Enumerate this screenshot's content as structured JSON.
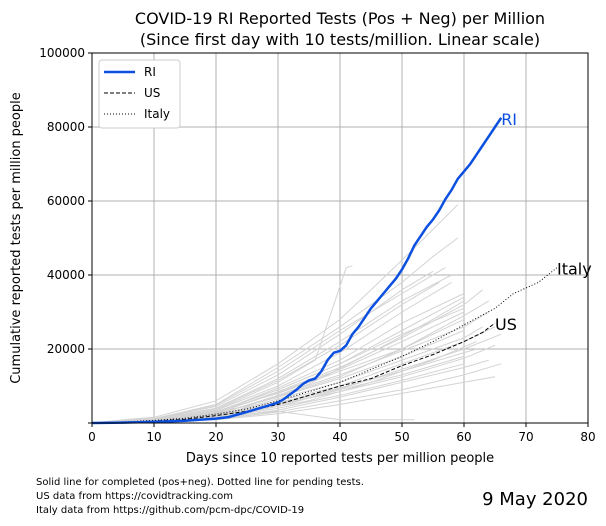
{
  "chart_data": {
    "type": "line",
    "title": "COVID-19 RI Reported Tests (Pos + Neg) per Million",
    "subtitle": "(Since first day with 10 tests/million. Linear scale)",
    "xlabel": "Days since 10 reported tests per million people",
    "ylabel": "Cumulative reported tests per million people",
    "xlim": [
      0,
      80
    ],
    "ylim": [
      0,
      100000
    ],
    "x_ticks": [
      "0",
      "10",
      "20",
      "30",
      "40",
      "50",
      "60",
      "70",
      "80"
    ],
    "y_ticks": [
      "",
      "20000",
      "40000",
      "60000",
      "80000",
      "100000"
    ],
    "grid": true,
    "legend_position": "top-left",
    "legend": [
      "RI",
      "US",
      "Italy"
    ],
    "series": [
      {
        "name": "RI",
        "style": "solid",
        "color": "#0b50e0",
        "end_label": "RI",
        "points": [
          [
            0,
            0
          ],
          [
            5,
            100
          ],
          [
            10,
            300
          ],
          [
            15,
            600
          ],
          [
            20,
            1200
          ],
          [
            22,
            1600
          ],
          [
            25,
            3000
          ],
          [
            28,
            4500
          ],
          [
            30,
            5500
          ],
          [
            31,
            6500
          ],
          [
            32,
            7800
          ],
          [
            33,
            9000
          ],
          [
            34,
            10500
          ],
          [
            35,
            11500
          ],
          [
            36,
            12000
          ],
          [
            37,
            14000
          ],
          [
            38,
            17000
          ],
          [
            39,
            19000
          ],
          [
            40,
            19500
          ],
          [
            41,
            21000
          ],
          [
            42,
            24000
          ],
          [
            43,
            26000
          ],
          [
            44,
            28500
          ],
          [
            45,
            31000
          ],
          [
            46,
            33000
          ],
          [
            47,
            35000
          ],
          [
            48,
            37000
          ],
          [
            49,
            39000
          ],
          [
            50,
            41500
          ],
          [
            51,
            44500
          ],
          [
            52,
            48000
          ],
          [
            53,
            50500
          ],
          [
            54,
            53000
          ],
          [
            55,
            55000
          ],
          [
            56,
            57500
          ],
          [
            57,
            60500
          ],
          [
            58,
            63000
          ],
          [
            59,
            66000
          ],
          [
            60,
            68000
          ],
          [
            61,
            70000
          ],
          [
            62,
            72500
          ],
          [
            63,
            75000
          ],
          [
            64,
            77500
          ],
          [
            65,
            80000
          ],
          [
            66,
            82500
          ]
        ]
      },
      {
        "name": "US",
        "style": "dashed",
        "color": "#000000",
        "end_label": "US",
        "points": [
          [
            0,
            0
          ],
          [
            5,
            200
          ],
          [
            10,
            500
          ],
          [
            15,
            1000
          ],
          [
            20,
            2000
          ],
          [
            25,
            3200
          ],
          [
            30,
            5000
          ],
          [
            35,
            7500
          ],
          [
            40,
            10000
          ],
          [
            45,
            12000
          ],
          [
            50,
            15500
          ],
          [
            55,
            18500
          ],
          [
            60,
            22000
          ],
          [
            63,
            24500
          ],
          [
            65,
            27000
          ]
        ]
      },
      {
        "name": "Italy",
        "style": "dotted",
        "color": "#000000",
        "end_label": "Italy",
        "points": [
          [
            0,
            0
          ],
          [
            5,
            300
          ],
          [
            10,
            700
          ],
          [
            15,
            1300
          ],
          [
            20,
            2400
          ],
          [
            25,
            3800
          ],
          [
            30,
            6000
          ],
          [
            35,
            8500
          ],
          [
            40,
            11000
          ],
          [
            45,
            14500
          ],
          [
            50,
            18000
          ],
          [
            55,
            22000
          ],
          [
            60,
            26500
          ],
          [
            65,
            31000
          ],
          [
            68,
            35000
          ],
          [
            72,
            38000
          ],
          [
            75,
            42000
          ]
        ]
      }
    ],
    "background_series": [
      [
        [
          0,
          0
        ],
        [
          10,
          400
        ],
        [
          20,
          1500
        ],
        [
          30,
          4500
        ],
        [
          40,
          9000
        ],
        [
          50,
          13000
        ],
        [
          60,
          18000
        ]
      ],
      [
        [
          0,
          0
        ],
        [
          10,
          600
        ],
        [
          20,
          2500
        ],
        [
          30,
          7000
        ],
        [
          40,
          12000
        ],
        [
          50,
          18000
        ],
        [
          60,
          25000
        ]
      ],
      [
        [
          0,
          0
        ],
        [
          10,
          300
        ],
        [
          20,
          1200
        ],
        [
          30,
          3500
        ],
        [
          40,
          7000
        ],
        [
          50,
          11000
        ],
        [
          60,
          15000
        ],
        [
          64,
          17000
        ]
      ],
      [
        [
          0,
          0
        ],
        [
          10,
          800
        ],
        [
          20,
          3000
        ],
        [
          30,
          9000
        ],
        [
          40,
          16000
        ],
        [
          50,
          24000
        ],
        [
          60,
          31000
        ]
      ],
      [
        [
          0,
          0
        ],
        [
          10,
          1000
        ],
        [
          20,
          4000
        ],
        [
          30,
          12000
        ],
        [
          40,
          22000
        ],
        [
          50,
          33000
        ],
        [
          58,
          40000
        ]
      ],
      [
        [
          0,
          0
        ],
        [
          10,
          700
        ],
        [
          20,
          3500
        ],
        [
          30,
          11000
        ],
        [
          36,
          17000
        ],
        [
          41,
          42000
        ],
        [
          42,
          42500
        ]
      ],
      [
        [
          0,
          0
        ],
        [
          10,
          500
        ],
        [
          20,
          2000
        ],
        [
          30,
          6000
        ],
        [
          40,
          10000
        ],
        [
          50,
          16000
        ],
        [
          60,
          22000
        ],
        [
          65,
          26000
        ]
      ],
      [
        [
          0,
          0
        ],
        [
          10,
          900
        ],
        [
          20,
          3200
        ],
        [
          30,
          8000
        ],
        [
          40,
          14000
        ],
        [
          50,
          20000
        ],
        [
          60,
          28000
        ]
      ],
      [
        [
          0,
          0
        ],
        [
          10,
          1200
        ],
        [
          20,
          5000
        ],
        [
          30,
          15000
        ],
        [
          40,
          26000
        ],
        [
          50,
          38000
        ],
        [
          55,
          45000
        ],
        [
          59,
          50000
        ]
      ],
      [
        [
          0,
          0
        ],
        [
          10,
          400
        ],
        [
          20,
          1800
        ],
        [
          30,
          5500
        ],
        [
          40,
          9500
        ],
        [
          50,
          14000
        ],
        [
          62,
          20000
        ]
      ],
      [
        [
          0,
          0
        ],
        [
          10,
          600
        ],
        [
          20,
          2200
        ],
        [
          30,
          7500
        ],
        [
          40,
          13000
        ],
        [
          50,
          19500
        ],
        [
          60,
          26000
        ],
        [
          64,
          30000
        ]
      ],
      [
        [
          0,
          0
        ],
        [
          10,
          1100
        ],
        [
          20,
          4500
        ],
        [
          30,
          13000
        ],
        [
          40,
          24000
        ],
        [
          50,
          36000
        ],
        [
          55,
          41000
        ]
      ],
      [
        [
          0,
          0
        ],
        [
          10,
          300
        ],
        [
          20,
          1000
        ],
        [
          30,
          3000
        ],
        [
          40,
          6000
        ],
        [
          50,
          9000
        ],
        [
          60,
          13000
        ],
        [
          66,
          16000
        ]
      ],
      [
        [
          0,
          0
        ],
        [
          10,
          800
        ],
        [
          20,
          2800
        ],
        [
          30,
          9500
        ],
        [
          40,
          17000
        ],
        [
          50,
          27000
        ],
        [
          60,
          35000
        ]
      ],
      [
        [
          0,
          0
        ],
        [
          10,
          700
        ],
        [
          20,
          2600
        ],
        [
          30,
          8500
        ],
        [
          40,
          15000
        ],
        [
          50,
          23000
        ],
        [
          60,
          32000
        ],
        [
          63,
          36000
        ]
      ],
      [
        [
          0,
          0
        ],
        [
          10,
          1500
        ],
        [
          20,
          6000
        ],
        [
          30,
          16000
        ],
        [
          40,
          28000
        ],
        [
          50,
          44000
        ],
        [
          59,
          59000
        ]
      ],
      [
        [
          0,
          0
        ],
        [
          10,
          500
        ],
        [
          20,
          1600
        ],
        [
          30,
          5000
        ],
        [
          40,
          8500
        ],
        [
          50,
          12500
        ],
        [
          60,
          17500
        ],
        [
          65,
          21000
        ]
      ],
      [
        [
          0,
          0
        ],
        [
          10,
          900
        ],
        [
          20,
          3400
        ],
        [
          30,
          10000
        ],
        [
          40,
          19000
        ],
        [
          50,
          30000
        ],
        [
          58,
          38000
        ]
      ],
      [
        [
          0,
          0
        ],
        [
          10,
          400
        ],
        [
          20,
          1400
        ],
        [
          30,
          4000
        ],
        [
          40,
          7500
        ],
        [
          50,
          11500
        ],
        [
          60,
          16000
        ]
      ],
      [
        [
          0,
          0
        ],
        [
          10,
          1000
        ],
        [
          20,
          3800
        ],
        [
          30,
          11500
        ],
        [
          40,
          21000
        ],
        [
          50,
          32000
        ],
        [
          56,
          38000
        ]
      ],
      [
        [
          0,
          0
        ],
        [
          10,
          600
        ],
        [
          20,
          2400
        ],
        [
          30,
          7200
        ],
        [
          40,
          12500
        ],
        [
          50,
          20000
        ],
        [
          60,
          29000
        ],
        [
          64,
          33000
        ]
      ],
      [
        [
          0,
          0
        ],
        [
          10,
          300
        ],
        [
          20,
          900
        ],
        [
          30,
          2500
        ],
        [
          40,
          5000
        ],
        [
          50,
          8000
        ],
        [
          60,
          11000
        ],
        [
          65,
          12500
        ]
      ],
      [
        [
          0,
          0
        ],
        [
          10,
          700
        ],
        [
          20,
          3000
        ],
        [
          30,
          9000
        ],
        [
          40,
          16000
        ],
        [
          50,
          25000
        ],
        [
          60,
          34000
        ]
      ],
      [
        [
          0,
          0
        ],
        [
          10,
          1200
        ],
        [
          20,
          4800
        ],
        [
          30,
          14000
        ],
        [
          40,
          25000
        ],
        [
          50,
          35000
        ],
        [
          57,
          42000
        ]
      ],
      [
        [
          0,
          0
        ],
        [
          10,
          500
        ],
        [
          20,
          2000
        ],
        [
          30,
          6500
        ],
        [
          40,
          11000
        ],
        [
          50,
          17000
        ],
        [
          60,
          23000
        ],
        [
          63,
          26000
        ]
      ],
      [
        [
          0,
          0
        ],
        [
          10,
          800
        ],
        [
          20,
          2700
        ],
        [
          30,
          8200
        ],
        [
          40,
          14500
        ],
        [
          50,
          22000
        ],
        [
          60,
          30000
        ]
      ],
      [
        [
          0,
          0
        ],
        [
          10,
          400
        ],
        [
          20,
          1700
        ],
        [
          30,
          5200
        ],
        [
          40,
          9200
        ],
        [
          50,
          14500
        ],
        [
          60,
          20000
        ],
        [
          66,
          24000
        ]
      ],
      [
        [
          0,
          0
        ],
        [
          5,
          200
        ],
        [
          15,
          800
        ],
        [
          25,
          2000
        ],
        [
          30,
          3000
        ]
      ],
      [
        [
          0,
          0
        ],
        [
          8,
          300
        ],
        [
          20,
          1500
        ],
        [
          35,
          6000
        ],
        [
          45,
          11000
        ],
        [
          55,
          17000
        ],
        [
          62,
          22000
        ]
      ],
      [
        [
          0,
          0
        ],
        [
          10,
          600
        ],
        [
          25,
          4500
        ],
        [
          35,
          10500
        ],
        [
          45,
          19000
        ],
        [
          55,
          28000
        ],
        [
          60,
          33000
        ]
      ],
      [
        [
          0,
          0
        ],
        [
          10,
          500
        ],
        [
          20,
          1600
        ],
        [
          30,
          3200
        ],
        [
          40,
          900
        ],
        [
          52,
          900
        ]
      ],
      [
        [
          0,
          0
        ],
        [
          6,
          1000
        ],
        [
          10,
          1500
        ]
      ]
    ]
  },
  "footer": {
    "line1": "Solid line for completed (pos+neg). Dotted line for pending tests.",
    "line2": "US data from https://covidtracking.com",
    "line3": "Italy data from https://github.com/pcm-dpc/COVID-19"
  },
  "date": "9 May 2020",
  "colors": {
    "ri": "#0b50e0",
    "background_series": "#d3d3d3",
    "grid": "#b0b0b0"
  }
}
